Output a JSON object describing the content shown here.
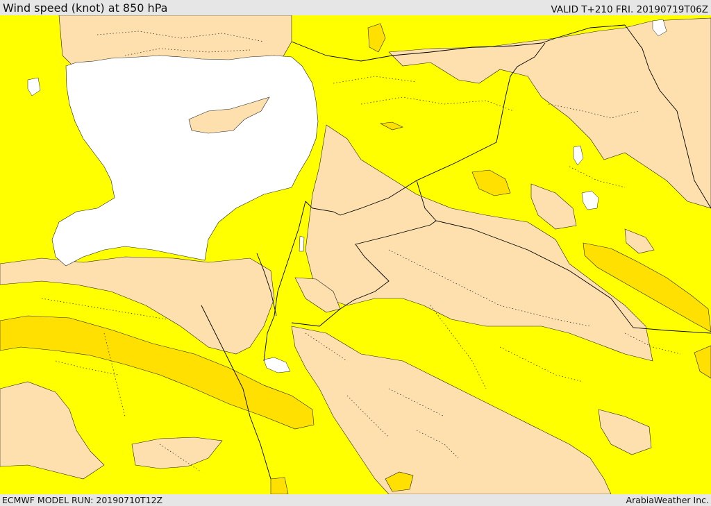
{
  "header": {
    "title": "Wind speed (knot) at 850 hPa",
    "valid_time": "VALID T+210 FRI. 20190719T06Z"
  },
  "footer": {
    "model_run": "ECMWF MODEL RUN: 20190710T12Z",
    "credit": "ArabiaWeather Inc."
  },
  "map": {
    "variable": "wind speed",
    "level": "850 hPa",
    "unit": "knot",
    "colors": {
      "sea": "#ffffff",
      "calm_band": "#fde0ad",
      "light_band": "#ffff00",
      "moderate_band": "#ffe000",
      "boundary_line": "#000000"
    },
    "features": [
      "mediterranean-sea",
      "cyprus",
      "red-sea",
      "persian-gulf",
      "international-boundaries",
      "regional-boundaries"
    ]
  }
}
